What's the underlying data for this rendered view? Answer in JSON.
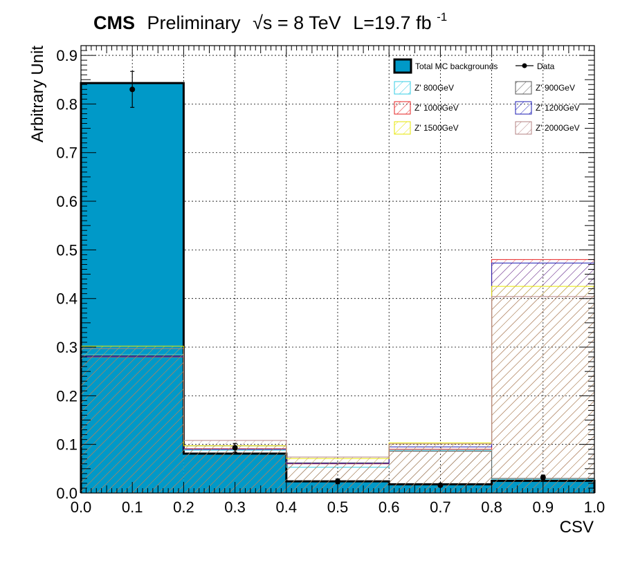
{
  "chart_data": {
    "type": "bar",
    "title_parts": {
      "experiment": "CMS",
      "status": "Preliminary",
      "energy": "√s = 8 TeV",
      "lumi": "L=19.7 fb",
      "lumi_exp": "-1"
    },
    "xlabel": "CSV",
    "ylabel": "Arbitrary Unit",
    "xlim": [
      0.0,
      1.0
    ],
    "ylim": [
      0.0,
      0.92
    ],
    "x_ticks": [
      "0.0",
      "0.1",
      "0.2",
      "0.3",
      "0.4",
      "0.5",
      "0.6",
      "0.7",
      "0.8",
      "0.9",
      "1.0"
    ],
    "y_ticks": [
      "0.0",
      "0.1",
      "0.2",
      "0.3",
      "0.4",
      "0.5",
      "0.6",
      "0.7",
      "0.8",
      "0.9"
    ],
    "grid": true,
    "bin_edges": [
      0.0,
      0.2,
      0.4,
      0.6,
      0.8,
      1.0
    ],
    "background": {
      "name": "Total MC backgrounds",
      "color": "#0099c8",
      "values": [
        0.843,
        0.081,
        0.024,
        0.018,
        0.025
      ]
    },
    "data": {
      "name": "Data",
      "values": [
        0.83,
        0.093,
        0.024,
        0.016,
        0.032
      ],
      "errors": [
        0.037,
        0.009,
        0.005,
        0.003,
        0.005
      ]
    },
    "signals": [
      {
        "name": "Z' 800GeV",
        "color": "#33cce6",
        "values": [
          0.285,
          0.088,
          0.053,
          0.088,
          0.028
        ]
      },
      {
        "name": "Z' 900GeV",
        "color": "#555555",
        "values": [
          0.283,
          0.097,
          0.062,
          0.086,
          0.03
        ]
      },
      {
        "name": "Z' 1000GeV",
        "color": "#e62222",
        "values": [
          0.28,
          0.091,
          0.06,
          0.09,
          0.48
        ]
      },
      {
        "name": "Z' 1200GeV",
        "color": "#1a1ab3",
        "values": [
          0.281,
          0.09,
          0.061,
          0.095,
          0.473
        ]
      },
      {
        "name": "Z' 1500GeV",
        "color": "#e6e600",
        "values": [
          0.302,
          0.097,
          0.071,
          0.103,
          0.425
        ]
      },
      {
        "name": "Z' 2000GeV",
        "color": "#b38080",
        "values": [
          0.297,
          0.108,
          0.074,
          0.101,
          0.404
        ]
      }
    ],
    "legend_position": "top-right"
  }
}
